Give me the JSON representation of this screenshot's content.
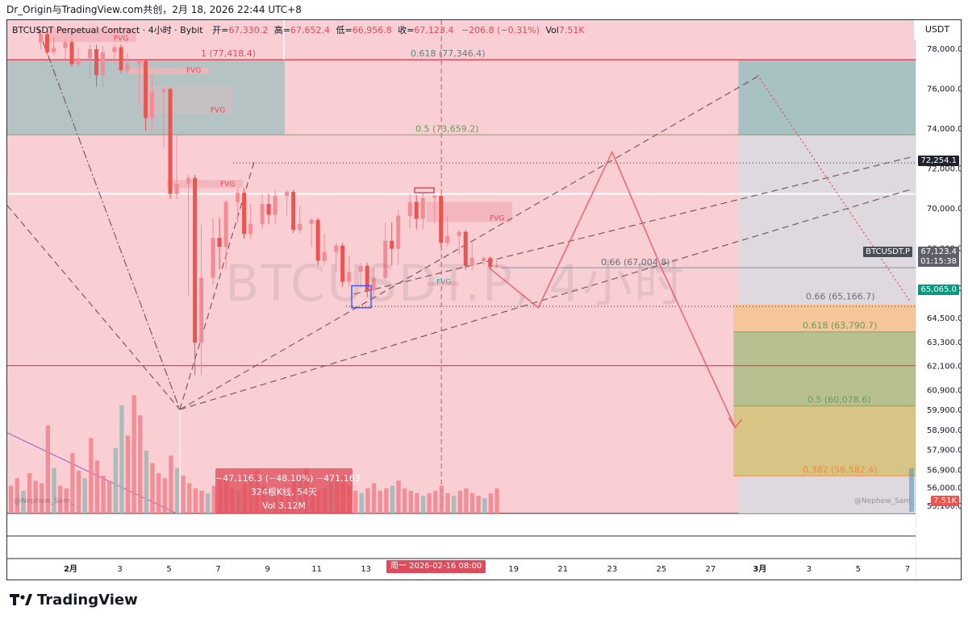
{
  "header": {
    "title_line": "Dr_Origin与TradingView.com共创，2月 18, 2026 22:44 UTC+8"
  },
  "legend": {
    "symbol": "BTCUSDT Perpetual Contract · 4小时 · Bybit",
    "open_label": "开=",
    "open": "67,330.2",
    "high_label": "高=",
    "high": "67,652.4",
    "low_label": "低=",
    "low": "66,956.8",
    "close_label": "收=",
    "close": "67,123.4",
    "change": "−206.8 (−0.31%)",
    "vol_label": "Vol",
    "vol": "7.51K"
  },
  "axis": {
    "currency": "USDT",
    "price_labels": [
      "78,000.0",
      "76,000.0",
      "74,000.0",
      "72,000.0",
      "70,000.0",
      "68,000.0",
      "66,000.0",
      "64,500.0",
      "63,300.0",
      "62,100.0",
      "60,900.0",
      "59,900.0",
      "58,900.0",
      "57,900.0",
      "56,900.0",
      "56,000.0",
      "55,100.0"
    ],
    "date_labels": [
      "2月",
      "3",
      "5",
      "7",
      "9",
      "11",
      "13",
      "19",
      "21",
      "23",
      "25",
      "27",
      "3月",
      "3",
      "5",
      "7"
    ]
  },
  "price_tags": {
    "level_72254": "72,254.1",
    "symbol_tag": "BTCUSDT.P",
    "last_price": "67,123.4",
    "countdown": "01:15:38",
    "level_65065": "65,065.0",
    "volume_tag": "7.51K"
  },
  "cursor_date": "周一 2026-02-16   08:00",
  "fib_labels": {
    "f1": "1 (77,418.4)",
    "f0618_top": "0.618 (77,346.4)",
    "f05_top": "0.5 (73,659.2)",
    "f066_mid": "0.66 (67,004.8)",
    "f066_low": "0.66 (65,166.7)",
    "f0618_low": "0.618 (63,790.7)",
    "f05_low": "0.5 (60,078.6)",
    "f0382_low": "0.382 (56,582.4)"
  },
  "fvg_label": "FVG",
  "watermark": "BTCUSDT.P, 4小时",
  "stats_box": {
    "line1": "−47,116.3 (−48.10%) −471,163",
    "line2": "324根K线, 54天",
    "line3": "Vol 3.12M"
  },
  "credits": {
    "left": "@Nephew_Sam_",
    "right": "@Nephew_Sam_"
  },
  "brand": "TradingView",
  "colors": {
    "background_pink": "#f9cfd3",
    "up": "#26a69a",
    "down": "#ef5350",
    "candle_up_pink": "#f48a94",
    "teal_zone": "#9fbfc0",
    "orange_zone": "#f5c69a",
    "olive_zone": "#d8c484",
    "accent_red": "#e04a5a"
  },
  "chart_data": {
    "type": "candlestick",
    "symbol": "BTCUSDT.P",
    "timeframe": "4小时",
    "x_range": [
      "2026-01-31",
      "2026-03-07"
    ],
    "ylim": [
      55100,
      79000
    ],
    "candles_daily_approx": [
      {
        "date": "2026-01-31",
        "open": 78300,
        "high": 79100,
        "low": 77600,
        "close": 78000
      },
      {
        "date": "2026-02-01",
        "open": 78000,
        "high": 78600,
        "low": 76900,
        "close": 77500
      },
      {
        "date": "2026-02-02",
        "open": 77500,
        "high": 78400,
        "low": 75500,
        "close": 77800
      },
      {
        "date": "2026-02-03",
        "open": 77800,
        "high": 78300,
        "low": 76600,
        "close": 77200
      },
      {
        "date": "2026-02-04",
        "open": 77200,
        "high": 77500,
        "low": 73200,
        "close": 75800
      },
      {
        "date": "2026-02-05",
        "open": 75800,
        "high": 76100,
        "low": 70200,
        "close": 71200
      },
      {
        "date": "2026-02-06",
        "open": 71200,
        "high": 71800,
        "low": 60000,
        "close": 66500
      },
      {
        "date": "2026-02-07",
        "open": 66500,
        "high": 70500,
        "low": 65800,
        "close": 70300
      },
      {
        "date": "2026-02-08",
        "open": 70300,
        "high": 71200,
        "low": 68200,
        "close": 69200
      },
      {
        "date": "2026-02-09",
        "open": 69200,
        "high": 71200,
        "low": 68700,
        "close": 70600
      },
      {
        "date": "2026-02-10",
        "open": 70600,
        "high": 71000,
        "low": 68600,
        "close": 69200
      },
      {
        "date": "2026-02-11",
        "open": 69200,
        "high": 69600,
        "low": 66900,
        "close": 67800
      },
      {
        "date": "2026-02-12",
        "open": 67800,
        "high": 68400,
        "low": 65800,
        "close": 66800
      },
      {
        "date": "2026-02-13",
        "open": 66800,
        "high": 67400,
        "low": 65200,
        "close": 66500
      },
      {
        "date": "2026-02-14",
        "open": 66500,
        "high": 70200,
        "low": 66300,
        "close": 69600
      },
      {
        "date": "2026-02-15",
        "open": 69600,
        "high": 71000,
        "low": 68400,
        "close": 70500
      },
      {
        "date": "2026-02-16",
        "open": 70500,
        "high": 70700,
        "low": 67900,
        "close": 68600
      },
      {
        "date": "2026-02-17",
        "open": 68600,
        "high": 69000,
        "low": 66700,
        "close": 67500
      },
      {
        "date": "2026-02-18",
        "open": 67330.2,
        "high": 67652.4,
        "low": 66956.8,
        "close": 67123.4
      }
    ],
    "levels": [
      {
        "label": "1 (77,418.4)",
        "price": 77418.4
      },
      {
        "label": "0.618 (77,346.4)",
        "price": 77346.4
      },
      {
        "label": "0.5 (73,659.2)",
        "price": 73659.2
      },
      {
        "label": "72,254.1",
        "price": 72254.1
      },
      {
        "label": "0.66 (67,004.8)",
        "price": 67004.8
      },
      {
        "label": "0.66 (65,166.7)",
        "price": 65166.7
      },
      {
        "label": "65,065.0",
        "price": 65065.0
      },
      {
        "label": "0.618 (63,790.7)",
        "price": 63790.7
      },
      {
        "label": "0.5 (60,078.6)",
        "price": 60078.6
      },
      {
        "label": "0.382 (56,582.4)",
        "price": 56582.4
      }
    ],
    "projection_path_prices": [
      {
        "date": "2026-02-18",
        "price": 67000
      },
      {
        "date": "2026-02-20",
        "price": 65000
      },
      {
        "date": "2026-02-23",
        "price": 72800
      },
      {
        "date": "2026-02-25",
        "price": 67000
      },
      {
        "date": "2026-02-28",
        "price": 59000
      }
    ],
    "volume_last": "7.51K",
    "measure": {
      "change": "−47,116.3 (−48.10%)",
      "ticks": "−471,163",
      "bars_days": "324根K线, 54天",
      "volume": "Vol 3.12M"
    }
  }
}
